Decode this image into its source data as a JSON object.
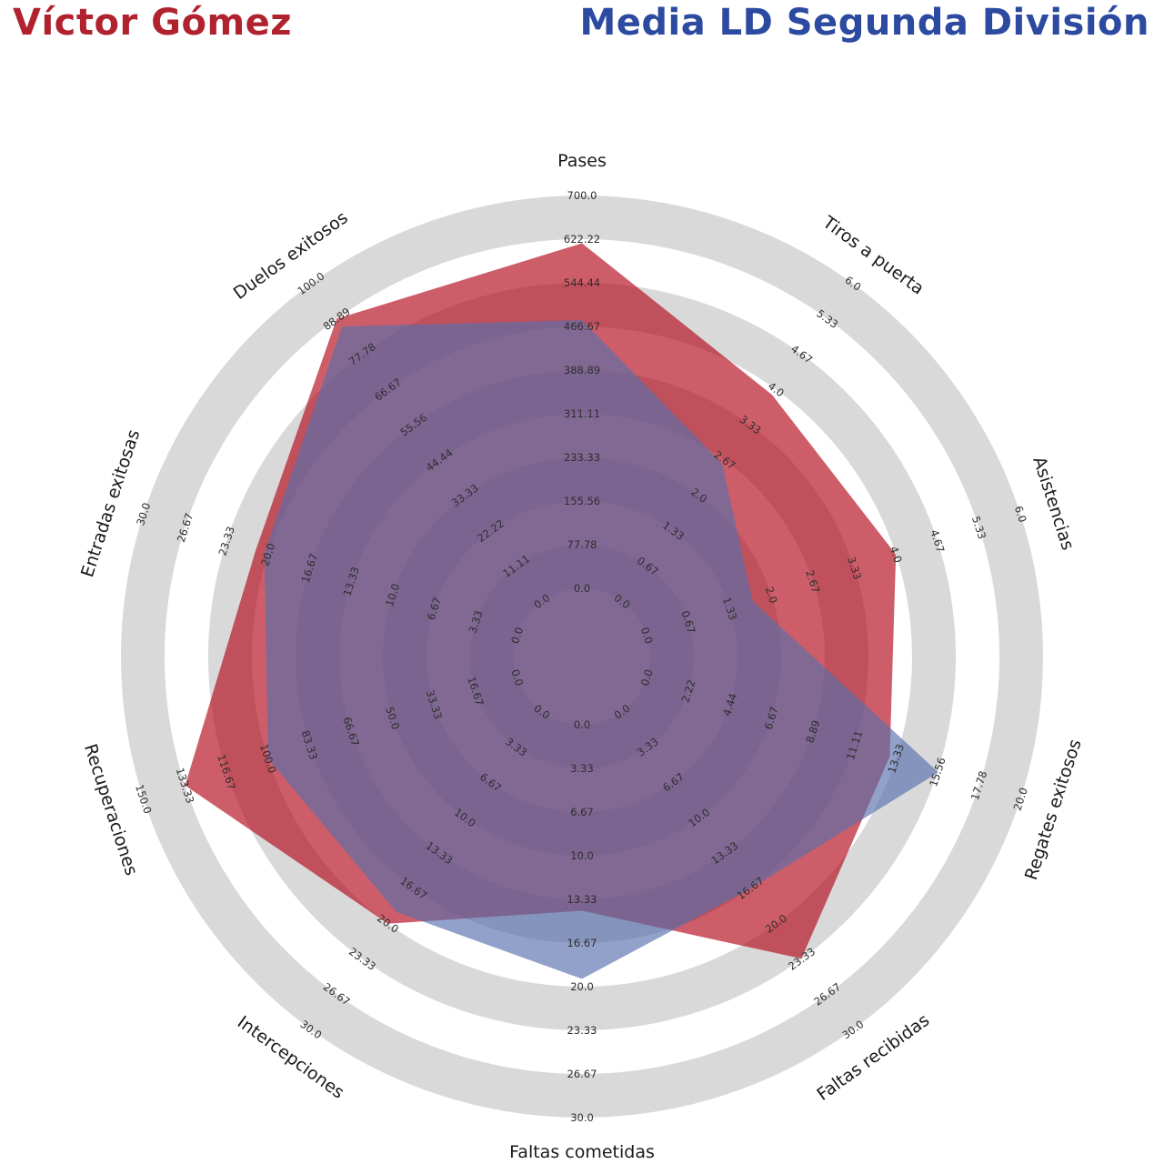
{
  "titles": {
    "player": "Víctor Gómez",
    "player_color": "#b1222f",
    "average": "Media LD Segunda División",
    "average_color": "#2b4aa0"
  },
  "chart_data": {
    "type": "radar",
    "title_left": "Víctor Gómez",
    "title_right": "Media LD Segunda División",
    "legend_position": "top-titles",
    "grid": "concentric-rings",
    "ring_color": "#d9d9d9",
    "ring_alt_color": "#ffffff",
    "tick_color": "#2e2e2e",
    "axis_label_color": "#1a1a1a",
    "axes": [
      {
        "label": "Pases",
        "min": 0,
        "max": 700,
        "ticks": [
          "0.0",
          "77.78",
          "155.56",
          "233.33",
          "311.11",
          "388.89",
          "466.67",
          "544.44",
          "622.22",
          "700.0"
        ]
      },
      {
        "label": "Tiros a puerta",
        "min": 0,
        "max": 6,
        "ticks": [
          "0.0",
          "0.67",
          "1.33",
          "2.0",
          "2.67",
          "3.33",
          "4.0",
          "4.67",
          "5.33",
          "6.0"
        ]
      },
      {
        "label": "Asistencias",
        "min": 0,
        "max": 6,
        "ticks": [
          "0.0",
          "0.67",
          "1.33",
          "2.0",
          "2.67",
          "3.33",
          "4.0",
          "4.67",
          "5.33",
          "6.0"
        ]
      },
      {
        "label": "Regates exitosos",
        "min": 0,
        "max": 20,
        "ticks": [
          "0.0",
          "2.22",
          "4.44",
          "6.67",
          "8.89",
          "11.11",
          "13.33",
          "15.56",
          "17.78",
          "20.0"
        ]
      },
      {
        "label": "Faltas recibidas",
        "min": 0,
        "max": 30,
        "ticks": [
          "0.0",
          "3.33",
          "6.67",
          "10.0",
          "13.33",
          "16.67",
          "20.0",
          "23.33",
          "26.67",
          "30.0"
        ]
      },
      {
        "label": "Faltas cometidas",
        "min": 0,
        "max": 30,
        "ticks": [
          "0.0",
          "3.33",
          "6.67",
          "10.0",
          "13.33",
          "16.67",
          "20.0",
          "23.33",
          "26.67",
          "30.0"
        ]
      },
      {
        "label": "Intercepciones",
        "min": 0,
        "max": 30,
        "ticks": [
          "0.0",
          "3.33",
          "6.67",
          "10.0",
          "13.33",
          "16.67",
          "20.0",
          "23.33",
          "26.67",
          "30.0"
        ]
      },
      {
        "label": "Recuperaciones",
        "min": 0,
        "max": 150,
        "ticks": [
          "0.0",
          "16.67",
          "33.33",
          "50.0",
          "66.67",
          "83.33",
          "100.0",
          "116.67",
          "133.33",
          "150.0"
        ]
      },
      {
        "label": "Entradas exitosas",
        "min": 0,
        "max": 30,
        "ticks": [
          "0.0",
          "3.33",
          "6.67",
          "10.0",
          "13.33",
          "16.67",
          "20.0",
          "23.33",
          "26.67",
          "30.0"
        ]
      },
      {
        "label": "Duelos exitosos",
        "min": 0,
        "max": 100,
        "ticks": [
          "0.0",
          "11.11",
          "22.22",
          "33.33",
          "44.44",
          "55.56",
          "66.67",
          "77.78",
          "88.89",
          "100.0"
        ]
      }
    ],
    "series": [
      {
        "name": "Víctor Gómez",
        "color": "#cd5a67",
        "fill": "rgba(178,8,24,0.65)",
        "values": [
          615,
          3.9,
          4.0,
          13.0,
          23.3,
          14.2,
          20.0,
          133.3,
          21.0,
          88.9
        ]
      },
      {
        "name": "Media LD Segunda División",
        "color": "#92a1c9",
        "fill": "rgba(87,110,172,0.65)",
        "values": [
          478,
          2.6,
          1.7,
          15.6,
          16.7,
          19.4,
          18.9,
          100.0,
          20.3,
          86.5
        ]
      }
    ]
  }
}
